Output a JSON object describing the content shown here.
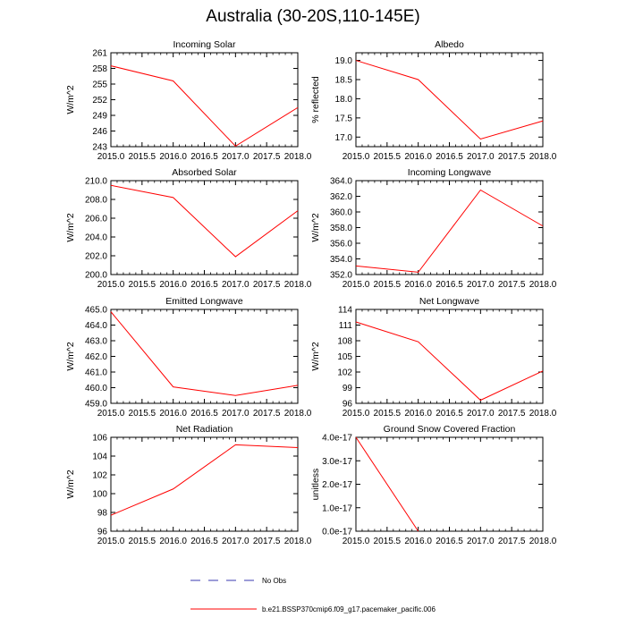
{
  "page_title": "Australia (30-20S,110-145E)",
  "legend": {
    "entries": [
      {
        "label": "No Obs",
        "style": "dashed",
        "color": "#3a3ab0"
      },
      {
        "label": "b.e21.BSSP370cmip6.f09_g17.pacemaker_pacific.006",
        "style": "solid",
        "color": "#ff0000"
      }
    ]
  },
  "chart_data": [
    {
      "type": "line",
      "title": "Incoming Solar",
      "ylabel": "W/m^2",
      "xlim": [
        2015.0,
        2018.0
      ],
      "ylim": [
        243,
        261
      ],
      "xticks": [
        "2015.0",
        "2015.5",
        "2016.0",
        "2016.5",
        "2017.0",
        "2017.5",
        "2018.0"
      ],
      "yticks": [
        "243",
        "246",
        "249",
        "252",
        "255",
        "258",
        "261"
      ],
      "series": [
        {
          "x": [
            2015,
            2016,
            2017,
            2018
          ],
          "y": [
            258.5,
            255.6,
            243.1,
            250.5
          ],
          "color": "#ff0000"
        }
      ]
    },
    {
      "type": "line",
      "title": "Albedo",
      "ylabel": "% reflected",
      "xlim": [
        2015.0,
        2018.0
      ],
      "ylim": [
        16.75,
        19.2
      ],
      "xticks": [
        "2015.0",
        "2015.5",
        "2016.0",
        "2016.5",
        "2017.0",
        "2017.5",
        "2018.0"
      ],
      "yticks": [
        "17.0",
        "17.5",
        "18.0",
        "18.5",
        "19.0"
      ],
      "series": [
        {
          "x": [
            2015,
            2016,
            2017,
            2018
          ],
          "y": [
            19.0,
            18.5,
            16.95,
            17.42
          ],
          "color": "#ff0000"
        }
      ]
    },
    {
      "type": "line",
      "title": "Absorbed Solar",
      "ylabel": "W/m^2",
      "xlim": [
        2015.0,
        2018.0
      ],
      "ylim": [
        200.0,
        210.0
      ],
      "xticks": [
        "2015.0",
        "2015.5",
        "2016.0",
        "2016.5",
        "2017.0",
        "2017.5",
        "2018.0"
      ],
      "yticks": [
        "200.0",
        "202.0",
        "204.0",
        "206.0",
        "208.0",
        "210.0"
      ],
      "series": [
        {
          "x": [
            2015,
            2016,
            2017,
            2018
          ],
          "y": [
            209.5,
            208.2,
            201.9,
            206.8
          ],
          "color": "#ff0000"
        }
      ]
    },
    {
      "type": "line",
      "title": "Incoming Longwave",
      "ylabel": "W/m^2",
      "xlim": [
        2015.0,
        2018.0
      ],
      "ylim": [
        352.0,
        364.0
      ],
      "xticks": [
        "2015.0",
        "2015.5",
        "2016.0",
        "2016.5",
        "2017.0",
        "2017.5",
        "2018.0"
      ],
      "yticks": [
        "352.0",
        "354.0",
        "356.0",
        "358.0",
        "360.0",
        "362.0",
        "364.0"
      ],
      "series": [
        {
          "x": [
            2015,
            2016,
            2017,
            2018
          ],
          "y": [
            353.1,
            352.3,
            362.8,
            358.2
          ],
          "color": "#ff0000"
        }
      ]
    },
    {
      "type": "line",
      "title": "Emitted Longwave",
      "ylabel": "W/m^2",
      "xlim": [
        2015.0,
        2018.0
      ],
      "ylim": [
        459.0,
        465.0
      ],
      "xticks": [
        "2015.0",
        "2015.5",
        "2016.0",
        "2016.5",
        "2017.0",
        "2017.5",
        "2018.0"
      ],
      "yticks": [
        "459.0",
        "460.0",
        "461.0",
        "462.0",
        "463.0",
        "464.0",
        "465.0"
      ],
      "series": [
        {
          "x": [
            2015,
            2016,
            2017,
            2018
          ],
          "y": [
            464.85,
            460.05,
            459.5,
            460.15
          ],
          "color": "#ff0000"
        }
      ]
    },
    {
      "type": "line",
      "title": "Net Longwave",
      "ylabel": "W/m^2",
      "xlim": [
        2015.0,
        2018.0
      ],
      "ylim": [
        96,
        114
      ],
      "xticks": [
        "2015.0",
        "2015.5",
        "2016.0",
        "2016.5",
        "2017.0",
        "2017.5",
        "2018.0"
      ],
      "yticks": [
        "96",
        "99",
        "102",
        "105",
        "108",
        "111",
        "114"
      ],
      "series": [
        {
          "x": [
            2015,
            2016,
            2017,
            2018
          ],
          "y": [
            111.6,
            107.8,
            96.6,
            102.2
          ],
          "color": "#ff0000"
        }
      ]
    },
    {
      "type": "line",
      "title": "Net Radiation",
      "ylabel": "W/m^2",
      "xlim": [
        2015.0,
        2018.0
      ],
      "ylim": [
        96,
        106
      ],
      "xticks": [
        "2015.0",
        "2015.5",
        "2016.0",
        "2016.5",
        "2017.0",
        "2017.5",
        "2018.0"
      ],
      "yticks": [
        "96",
        "98",
        "100",
        "102",
        "104",
        "106"
      ],
      "series": [
        {
          "x": [
            2015,
            2016,
            2017,
            2018
          ],
          "y": [
            97.7,
            100.5,
            105.2,
            104.9
          ],
          "color": "#ff0000"
        }
      ]
    },
    {
      "type": "line",
      "title": "Ground Snow Covered Fraction",
      "ylabel": "unitless",
      "xlim": [
        2015.0,
        2018.0
      ],
      "ylim": [
        0.0,
        4e-17
      ],
      "xticks": [
        "2015.0",
        "2015.5",
        "2016.0",
        "2016.5",
        "2017.0",
        "2017.5",
        "2018.0"
      ],
      "yticks": [
        "0.0e-17",
        "1.0e-17",
        "2.0e-17",
        "3.0e-17",
        "4.0e-17"
      ],
      "series": [
        {
          "x": [
            2015,
            2016
          ],
          "y": [
            4e-17,
            0.0
          ],
          "color": "#ff0000"
        }
      ]
    }
  ]
}
